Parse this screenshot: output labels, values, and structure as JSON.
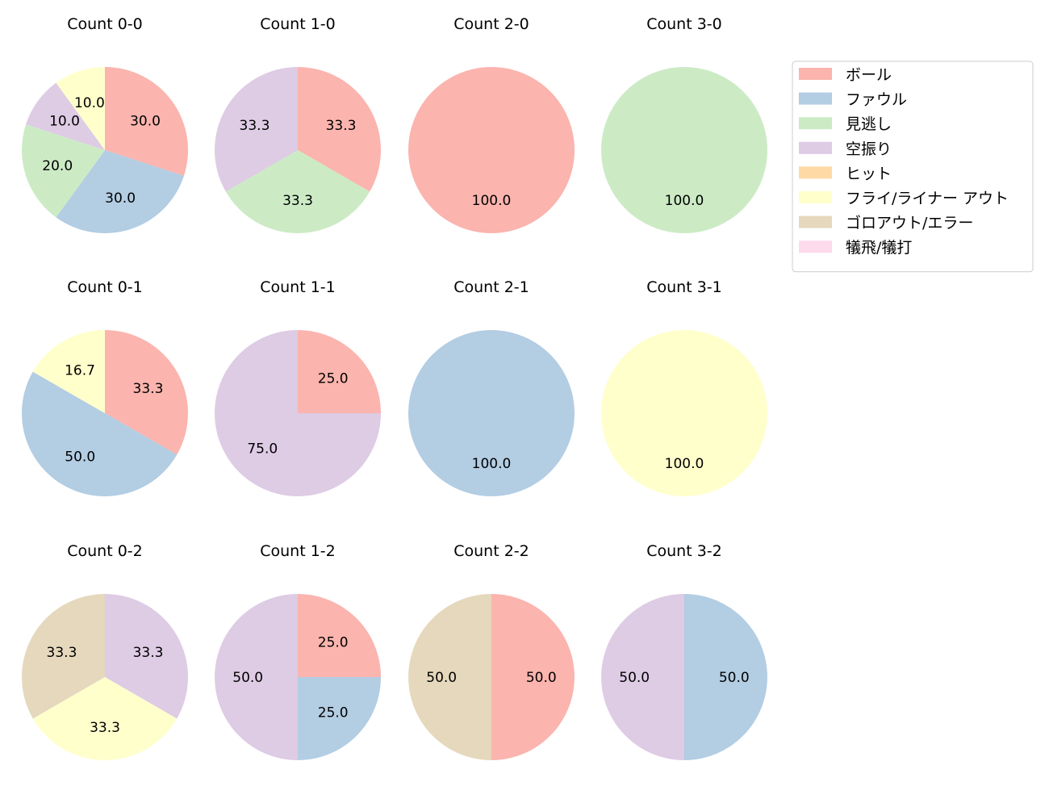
{
  "chart_data": {
    "type": "pie",
    "legend": {
      "placement": "top-right",
      "entries": [
        {
          "label": "ボール",
          "color": "#fbb4ae"
        },
        {
          "label": "ファウル",
          "color": "#b3cde3"
        },
        {
          "label": "見逃し",
          "color": "#ccebc5"
        },
        {
          "label": "空振り",
          "color": "#decbe4"
        },
        {
          "label": "ヒット",
          "color": "#fed9a6"
        },
        {
          "label": "フライ/ライナー アウト",
          "color": "#ffffcc"
        },
        {
          "label": "ゴロアウト/エラー",
          "color": "#e5d8bd"
        },
        {
          "label": "犠飛/犠打",
          "color": "#fddaec"
        }
      ]
    },
    "pies": [
      {
        "title": "Count 0-0",
        "slices": [
          {
            "category": "ボール",
            "value": 30.0
          },
          {
            "category": "ファウル",
            "value": 30.0
          },
          {
            "category": "見逃し",
            "value": 20.0
          },
          {
            "category": "空振り",
            "value": 10.0
          },
          {
            "category": "フライ/ライナー アウト",
            "value": 10.0
          }
        ]
      },
      {
        "title": "Count 1-0",
        "slices": [
          {
            "category": "ボール",
            "value": 33.3
          },
          {
            "category": "見逃し",
            "value": 33.3
          },
          {
            "category": "空振り",
            "value": 33.3
          }
        ]
      },
      {
        "title": "Count 2-0",
        "slices": [
          {
            "category": "ボール",
            "value": 100.0
          }
        ]
      },
      {
        "title": "Count 3-0",
        "slices": [
          {
            "category": "見逃し",
            "value": 100.0
          }
        ]
      },
      {
        "title": "Count 0-1",
        "slices": [
          {
            "category": "ボール",
            "value": 33.3
          },
          {
            "category": "ファウル",
            "value": 50.0
          },
          {
            "category": "フライ/ライナー アウト",
            "value": 16.7
          }
        ]
      },
      {
        "title": "Count 1-1",
        "slices": [
          {
            "category": "ボール",
            "value": 25.0
          },
          {
            "category": "空振り",
            "value": 75.0
          }
        ]
      },
      {
        "title": "Count 2-1",
        "slices": [
          {
            "category": "ファウル",
            "value": 100.0
          }
        ]
      },
      {
        "title": "Count 3-1",
        "slices": [
          {
            "category": "フライ/ライナー アウト",
            "value": 100.0
          }
        ]
      },
      {
        "title": "Count 0-2",
        "slices": [
          {
            "category": "空振り",
            "value": 33.3
          },
          {
            "category": "フライ/ライナー アウト",
            "value": 33.3
          },
          {
            "category": "ゴロアウト/エラー",
            "value": 33.3
          }
        ]
      },
      {
        "title": "Count 1-2",
        "slices": [
          {
            "category": "ボール",
            "value": 25.0
          },
          {
            "category": "ファウル",
            "value": 25.0
          },
          {
            "category": "空振り",
            "value": 50.0
          }
        ]
      },
      {
        "title": "Count 2-2",
        "slices": [
          {
            "category": "ボール",
            "value": 50.0
          },
          {
            "category": "ゴロアウト/エラー",
            "value": 50.0
          }
        ]
      },
      {
        "title": "Count 3-2",
        "slices": [
          {
            "category": "ファウル",
            "value": 50.0
          },
          {
            "category": "空振り",
            "value": 50.0
          }
        ]
      }
    ]
  }
}
